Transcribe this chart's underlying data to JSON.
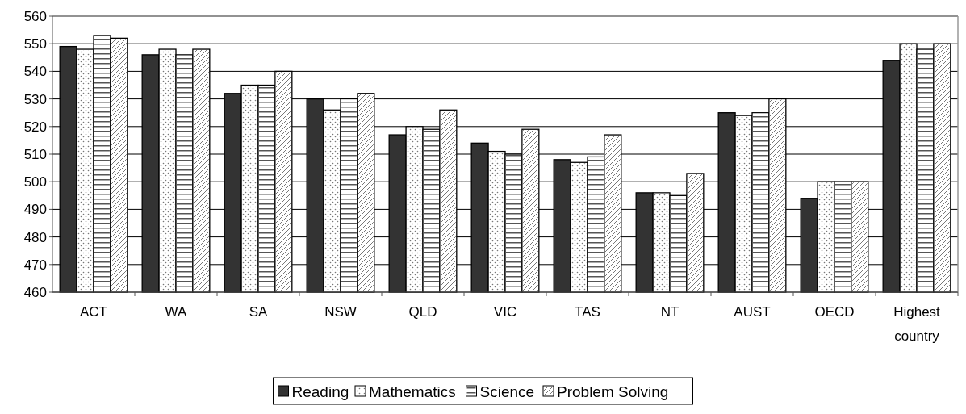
{
  "chart_data": {
    "type": "bar",
    "categories": [
      "ACT",
      "WA",
      "SA",
      "NSW",
      "QLD",
      "VIC",
      "TAS",
      "NT",
      "AUST",
      "OECD",
      "Highest country"
    ],
    "series": [
      {
        "name": "Reading",
        "color": "#333333",
        "values": [
          549,
          546,
          532,
          530,
          517,
          514,
          508,
          496,
          525,
          494,
          544
        ]
      },
      {
        "name": "Mathematics",
        "color": "#ffffff",
        "values": [
          548,
          548,
          535,
          526,
          520,
          511,
          507,
          496,
          524,
          500,
          550
        ]
      },
      {
        "name": "Science",
        "color": "#ffffff",
        "values": [
          553,
          546,
          535,
          530,
          519,
          510,
          509,
          495,
          525,
          500,
          548
        ]
      },
      {
        "name": "Problem Solving",
        "color": "#ffffff",
        "values": [
          552,
          548,
          540,
          532,
          526,
          519,
          517,
          503,
          530,
          500,
          550
        ]
      }
    ],
    "ylim": [
      460,
      560
    ],
    "yticks": [
      460,
      470,
      480,
      490,
      500,
      510,
      520,
      530,
      540,
      550,
      560
    ],
    "grid": "y",
    "legend": "bottom"
  }
}
